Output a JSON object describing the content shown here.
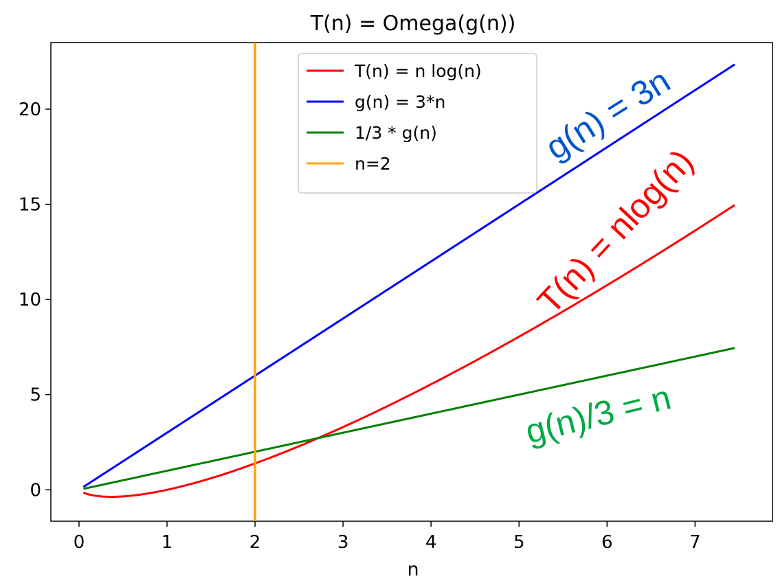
{
  "chart_data": {
    "type": "line",
    "title": "T(n) = Omega(g(n))",
    "xlabel": "n",
    "ylabel": "",
    "xlim": [
      -0.32,
      7.88
    ],
    "ylim": [
      -1.65,
      23.5
    ],
    "xticks": [
      0,
      1,
      2,
      3,
      4,
      5,
      6,
      7
    ],
    "yticks": [
      0,
      5,
      10,
      15,
      20
    ],
    "grid": false,
    "legend_position": "top-center",
    "series": [
      {
        "name": "T(n) = n log(n)",
        "color": "#ff0000",
        "function": "n*ln(n)",
        "x_range": [
          0.05,
          7.45
        ]
      },
      {
        "name": "g(n) = 3*n",
        "color": "#0000ff",
        "function": "3*n",
        "x_range": [
          0.05,
          7.45
        ]
      },
      {
        "name": "1/3 * g(n)",
        "color": "#008000",
        "function": "n",
        "x_range": [
          0.05,
          7.45
        ]
      }
    ],
    "vlines": [
      {
        "name": "n=2",
        "x": 2,
        "color": "#ffa500"
      }
    ],
    "annotations": [
      {
        "text": "g(n) = 3n",
        "color": "#0055cc"
      },
      {
        "text": "T(n) = nlog(n)",
        "color": "#ff0000"
      },
      {
        "text": "g(n)/3 = n",
        "color": "#00aa44"
      }
    ]
  }
}
